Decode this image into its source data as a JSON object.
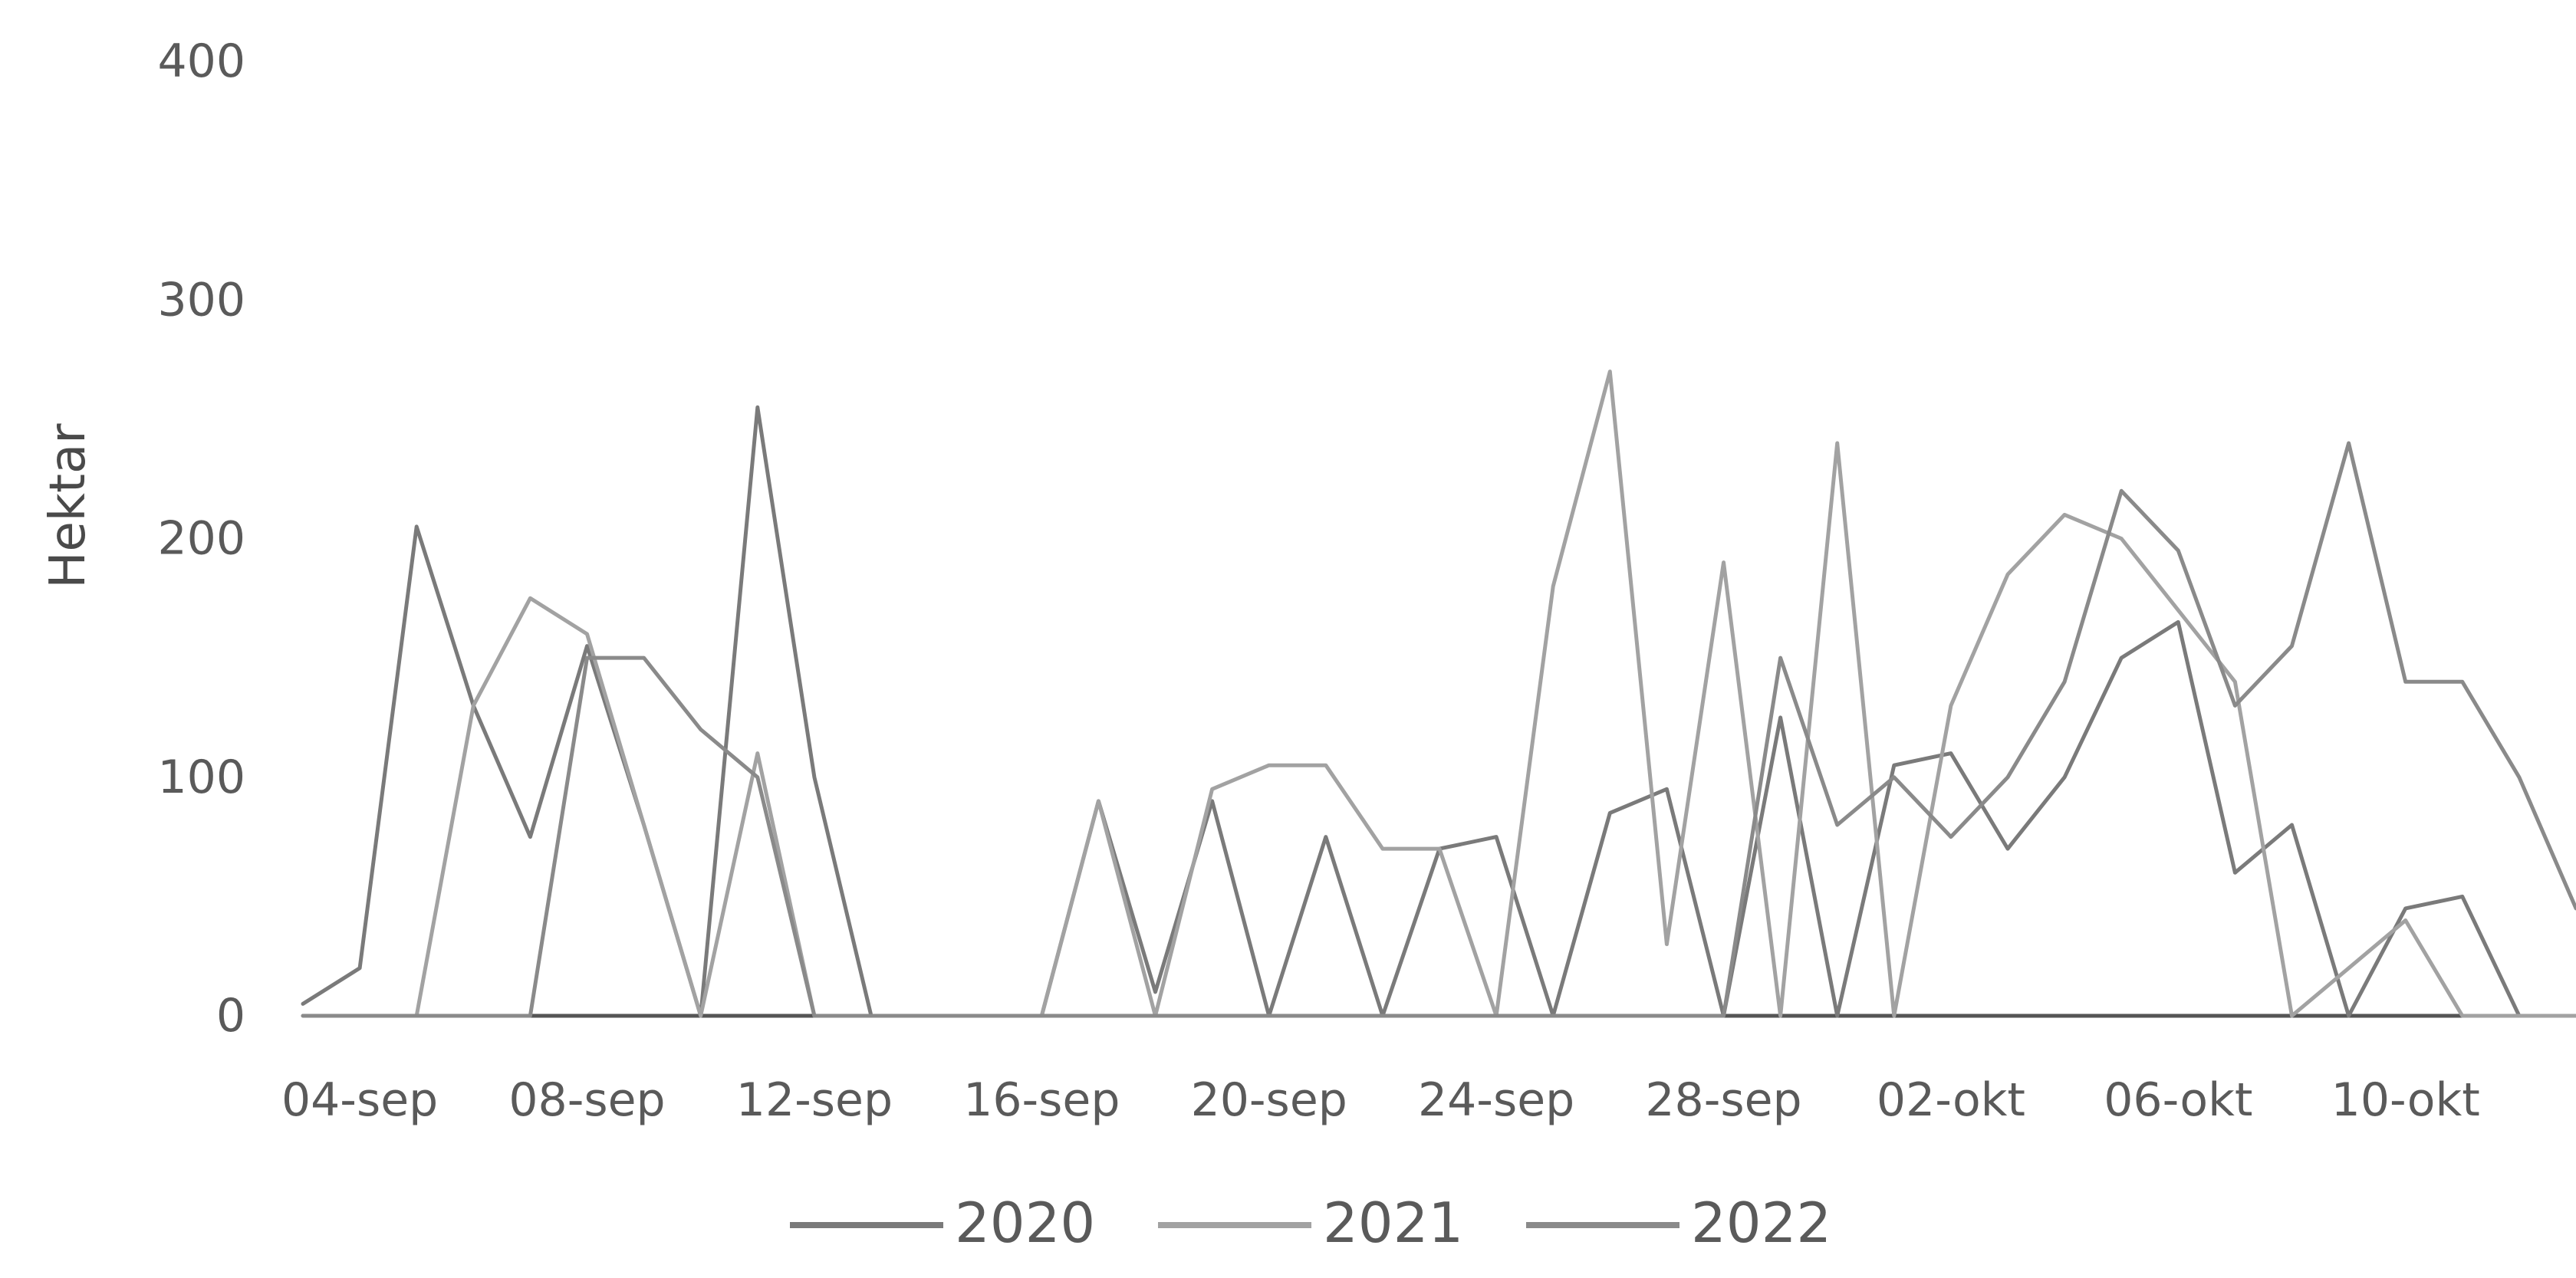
{
  "chart_data": {
    "type": "line",
    "title": "",
    "xlabel": "",
    "ylabel": "Hektar",
    "ylim": [
      0,
      400
    ],
    "yticks": [
      0,
      100,
      200,
      300,
      400
    ],
    "grid": false,
    "legend_position": "bottom",
    "x": [
      "03-sep",
      "04-sep",
      "05-sep",
      "06-sep",
      "07-sep",
      "08-sep",
      "09-sep",
      "10-sep",
      "11-sep",
      "12-sep",
      "13-sep",
      "14-sep",
      "15-sep",
      "16-sep",
      "17-sep",
      "18-sep",
      "19-sep",
      "20-sep",
      "21-sep",
      "22-sep",
      "23-sep",
      "24-sep",
      "25-sep",
      "26-sep",
      "27-sep",
      "28-sep",
      "29-sep",
      "30-sep",
      "01-okt",
      "02-okt",
      "03-okt",
      "04-okt",
      "05-okt",
      "06-okt",
      "07-okt",
      "08-okt",
      "09-okt",
      "10-okt",
      "11-okt",
      "12-okt",
      "13-okt"
    ],
    "xtick_labels": [
      "04-sep",
      "08-sep",
      "12-sep",
      "16-sep",
      "20-sep",
      "24-sep",
      "28-sep",
      "02-okt",
      "06-okt",
      "10-okt"
    ],
    "series": [
      {
        "name": "2020",
        "color": "#7a7a7a",
        "values": [
          5,
          20,
          205,
          130,
          75,
          155,
          80,
          0,
          255,
          100,
          0,
          0,
          0,
          0,
          90,
          10,
          90,
          0,
          75,
          0,
          70,
          75,
          0,
          85,
          95,
          0,
          125,
          0,
          105,
          110,
          70,
          100,
          150,
          165,
          60,
          80,
          0,
          45,
          50,
          0,
          0
        ]
      },
      {
        "name": "2021",
        "color": "#a2a2a2",
        "values": [
          0,
          0,
          0,
          130,
          175,
          160,
          80,
          0,
          110,
          0,
          0,
          0,
          0,
          0,
          90,
          0,
          95,
          105,
          105,
          70,
          70,
          0,
          180,
          270,
          30,
          190,
          0,
          240,
          0,
          130,
          185,
          210,
          200,
          170,
          140,
          0,
          20,
          40,
          0,
          0,
          0
        ]
      },
      {
        "name": "2022",
        "color": "#8a8a8a",
        "values": [
          0,
          0,
          0,
          0,
          0,
          150,
          150,
          120,
          100,
          0,
          0,
          0,
          0,
          0,
          0,
          0,
          0,
          0,
          0,
          0,
          0,
          0,
          0,
          0,
          0,
          0,
          150,
          80,
          100,
          75,
          100,
          140,
          220,
          195,
          130,
          155,
          240,
          140,
          140,
          100,
          45
        ]
      }
    ]
  }
}
